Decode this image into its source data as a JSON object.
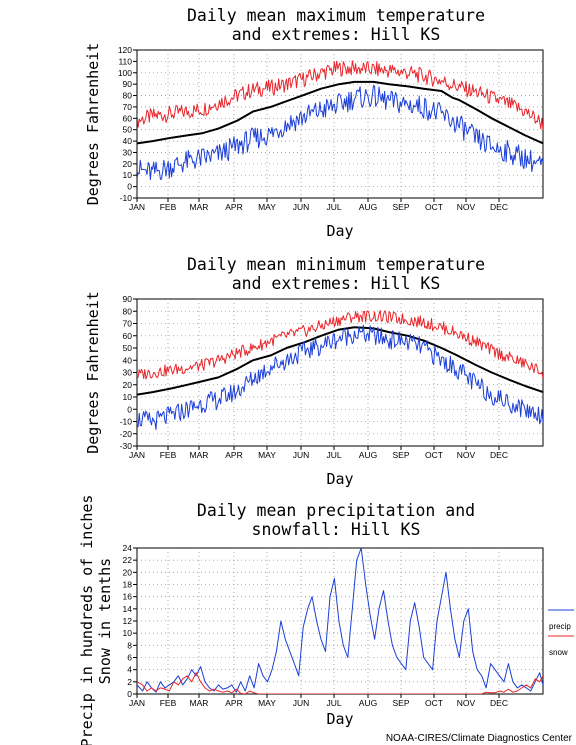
{
  "credit": "NOAA-CIRES/Climate Diagnostics Center",
  "colors": {
    "max": "#e8262b",
    "mean": "#000000",
    "min": "#1c3fd8",
    "precip": "#1c3fd8",
    "snow": "#e8262b",
    "grid": "#9a9a9a"
  },
  "chart_data": [
    {
      "type": "line",
      "title": [
        "Daily mean maximum temperature",
        "and extremes: Hill KS"
      ],
      "xlabel": "Day",
      "ylabel": "Degrees Fahrenheit",
      "months": [
        "JAN",
        "FEB",
        "MAR",
        "APR",
        "MAY",
        "JUN",
        "JUL",
        "AUG",
        "SEP",
        "OCT",
        "NOV",
        "DEC"
      ],
      "ylim": [
        -10,
        120
      ],
      "yticks": [
        -10,
        0,
        10,
        20,
        30,
        40,
        50,
        60,
        70,
        80,
        90,
        100,
        110,
        120
      ],
      "grid": true,
      "series": [
        {
          "key": "max",
          "color": "#e8262b",
          "width": 1,
          "noise": 7,
          "x": [
            1,
            15,
            32,
            46,
            60,
            74,
            91,
            105,
            121,
            135,
            152,
            166,
            182,
            196,
            213,
            227,
            244,
            258,
            274,
            288,
            305,
            319,
            335,
            349,
            365
          ],
          "y": [
            58,
            62,
            64,
            66,
            68,
            74,
            80,
            85,
            87,
            90,
            95,
            100,
            104,
            104,
            103,
            102,
            100,
            97,
            93,
            88,
            83,
            78,
            72,
            66,
            55
          ]
        },
        {
          "key": "mean",
          "color": "#000000",
          "width": 2,
          "noise": 0,
          "x": [
            1,
            15,
            32,
            46,
            60,
            74,
            91,
            105,
            121,
            135,
            152,
            166,
            182,
            196,
            213,
            227,
            244,
            258,
            274,
            284,
            290,
            305,
            319,
            335,
            349,
            365
          ],
          "y": [
            38,
            40,
            43,
            45,
            47,
            51,
            58,
            66,
            70,
            75,
            81,
            86,
            90,
            92,
            92,
            90,
            88,
            86,
            84,
            78,
            76,
            68,
            60,
            52,
            45,
            38
          ]
        },
        {
          "key": "min",
          "color": "#1c3fd8",
          "width": 1,
          "noise": 10,
          "x": [
            1,
            15,
            32,
            46,
            60,
            74,
            91,
            105,
            121,
            135,
            152,
            166,
            182,
            196,
            213,
            227,
            244,
            258,
            274,
            288,
            305,
            319,
            335,
            349,
            365
          ],
          "y": [
            15,
            12,
            18,
            22,
            25,
            28,
            36,
            42,
            46,
            55,
            62,
            67,
            72,
            78,
            79,
            75,
            72,
            70,
            63,
            55,
            42,
            35,
            30,
            25,
            18
          ]
        }
      ]
    },
    {
      "type": "line",
      "title": [
        "Daily mean minimum temperature",
        "and extremes: Hill KS"
      ],
      "xlabel": "Day",
      "ylabel": "Degrees Fahrenheit",
      "months": [
        "JAN",
        "FEB",
        "MAR",
        "APR",
        "MAY",
        "JUN",
        "JUL",
        "AUG",
        "SEP",
        "OCT",
        "NOV",
        "DEC"
      ],
      "ylim": [
        -30,
        90
      ],
      "yticks": [
        -30,
        -20,
        -10,
        0,
        10,
        20,
        30,
        40,
        50,
        60,
        70,
        80,
        90
      ],
      "grid": true,
      "series": [
        {
          "key": "max",
          "color": "#e8262b",
          "width": 1,
          "noise": 5,
          "x": [
            1,
            15,
            32,
            46,
            60,
            74,
            91,
            105,
            121,
            135,
            152,
            166,
            182,
            196,
            213,
            227,
            244,
            258,
            274,
            288,
            305,
            319,
            335,
            349,
            365
          ],
          "y": [
            28,
            30,
            32,
            34,
            36,
            40,
            46,
            50,
            56,
            60,
            64,
            68,
            73,
            76,
            76,
            75,
            73,
            71,
            67,
            62,
            55,
            48,
            42,
            37,
            30
          ]
        },
        {
          "key": "mean",
          "color": "#000000",
          "width": 2,
          "noise": 0,
          "x": [
            1,
            15,
            32,
            46,
            60,
            74,
            91,
            105,
            121,
            135,
            152,
            166,
            182,
            196,
            213,
            227,
            244,
            258,
            274,
            288,
            305,
            319,
            335,
            349,
            365
          ],
          "y": [
            12,
            14,
            17,
            20,
            23,
            26,
            33,
            40,
            44,
            50,
            55,
            60,
            65,
            67,
            66,
            63,
            60,
            56,
            50,
            44,
            36,
            30,
            24,
            19,
            14
          ]
        },
        {
          "key": "min",
          "color": "#1c3fd8",
          "width": 1,
          "noise": 8,
          "x": [
            1,
            15,
            32,
            46,
            60,
            74,
            91,
            105,
            121,
            135,
            152,
            166,
            182,
            196,
            213,
            227,
            244,
            258,
            274,
            288,
            305,
            319,
            335,
            349,
            365
          ],
          "y": [
            -8,
            -10,
            -5,
            0,
            5,
            8,
            15,
            25,
            35,
            40,
            48,
            52,
            58,
            62,
            60,
            57,
            55,
            50,
            40,
            33,
            20,
            12,
            5,
            0,
            -5
          ]
        }
      ]
    },
    {
      "type": "line",
      "title": [
        "Daily mean precipitation and",
        "snowfall: Hill KS"
      ],
      "xlabel": "Day",
      "ylabel": [
        "Precip in hundreds of inches",
        "Snow in tenths"
      ],
      "months": [
        "JAN",
        "FEB",
        "MAR",
        "APR",
        "MAY",
        "JUN",
        "JUL",
        "AUG",
        "SEP",
        "OCT",
        "NOV",
        "DEC"
      ],
      "ylim": [
        0,
        24
      ],
      "yticks": [
        0,
        2,
        4,
        6,
        8,
        10,
        12,
        14,
        16,
        18,
        20,
        22,
        24
      ],
      "grid": true,
      "legend": {
        "placement": "right",
        "entries": [
          {
            "label": "precip",
            "color": "#1c3fd8"
          },
          {
            "label": "snow",
            "color": "#e8262b"
          }
        ]
      },
      "series": [
        {
          "key": "precip",
          "color": "#1c3fd8",
          "width": 1,
          "noise": 0,
          "x": [
            1,
            6,
            10,
            14,
            18,
            22,
            26,
            30,
            34,
            38,
            42,
            46,
            50,
            54,
            58,
            62,
            66,
            70,
            74,
            78,
            82,
            86,
            90,
            94,
            98,
            102,
            106,
            110,
            114,
            118,
            122,
            126,
            130,
            134,
            138,
            142,
            146,
            150,
            154,
            158,
            162,
            166,
            170,
            174,
            178,
            182,
            186,
            190,
            194,
            198,
            202,
            206,
            210,
            214,
            218,
            222,
            226,
            230,
            234,
            238,
            242,
            246,
            250,
            254,
            258,
            262,
            266,
            270,
            274,
            278,
            282,
            286,
            290,
            294,
            298,
            302,
            306,
            310,
            314,
            318,
            322,
            326,
            330,
            334,
            338,
            342,
            346,
            350,
            354,
            358,
            362,
            365
          ],
          "y": [
            1.5,
            0.5,
            2,
            1,
            0.3,
            2,
            1,
            1.5,
            2,
            3,
            1.5,
            2.5,
            4,
            3,
            4.5,
            2,
            1,
            0.5,
            1.5,
            0.8,
            1,
            1.5,
            0.3,
            2,
            0.5,
            3,
            1,
            5,
            3,
            2,
            4,
            7,
            12,
            9,
            7,
            5,
            3,
            11,
            14,
            16,
            12,
            9,
            7,
            16,
            19,
            12,
            8,
            6,
            14,
            22,
            24,
            18,
            13,
            9,
            14,
            17,
            12,
            8,
            6,
            5,
            4,
            12,
            15,
            11,
            6,
            5,
            4,
            12,
            16,
            20,
            14,
            9,
            6,
            12,
            14,
            7,
            4,
            3,
            1,
            5,
            4,
            3,
            2,
            5,
            2,
            1,
            1.5,
            1,
            0.5,
            2,
            3.5,
            1.5
          ]
        },
        {
          "key": "snow",
          "color": "#e8262b",
          "width": 1,
          "noise": 0,
          "x": [
            1,
            6,
            10,
            14,
            18,
            22,
            26,
            30,
            34,
            38,
            42,
            46,
            50,
            54,
            58,
            62,
            66,
            70,
            74,
            78,
            82,
            86,
            90,
            94,
            98,
            102,
            106,
            110,
            114,
            118,
            122,
            126,
            130,
            134,
            138,
            142,
            146,
            150,
            154,
            158,
            162,
            166,
            170,
            174,
            178,
            182,
            186,
            190,
            194,
            198,
            202,
            206,
            210,
            214,
            218,
            222,
            226,
            230,
            234,
            238,
            242,
            246,
            250,
            254,
            258,
            262,
            266,
            270,
            274,
            278,
            282,
            286,
            290,
            294,
            298,
            302,
            306,
            310,
            314,
            318,
            322,
            326,
            330,
            334,
            338,
            342,
            346,
            350,
            354,
            358,
            362,
            365
          ],
          "y": [
            2,
            1.5,
            0.5,
            1,
            0.5,
            1,
            0.8,
            0.5,
            2,
            1.5,
            2.5,
            3,
            2,
            3.5,
            2,
            1,
            0.5,
            0.8,
            0.5,
            0.3,
            0.5,
            0.2,
            0.8,
            0.1,
            0,
            0.5,
            0.2,
            0,
            0,
            0,
            0,
            0,
            0,
            0,
            0,
            0,
            0,
            0,
            0,
            0,
            0,
            0,
            0,
            0,
            0,
            0,
            0,
            0,
            0,
            0,
            0,
            0,
            0,
            0,
            0,
            0,
            0,
            0,
            0,
            0,
            0,
            0,
            0,
            0,
            0,
            0,
            0,
            0,
            0,
            0,
            0,
            0,
            0,
            0,
            0,
            0,
            0,
            0,
            0.3,
            0.2,
            0.2,
            0.5,
            0.3,
            0.8,
            0.3,
            0.5,
            1,
            1.5,
            1,
            2.5,
            2,
            3
          ]
        }
      ]
    }
  ]
}
